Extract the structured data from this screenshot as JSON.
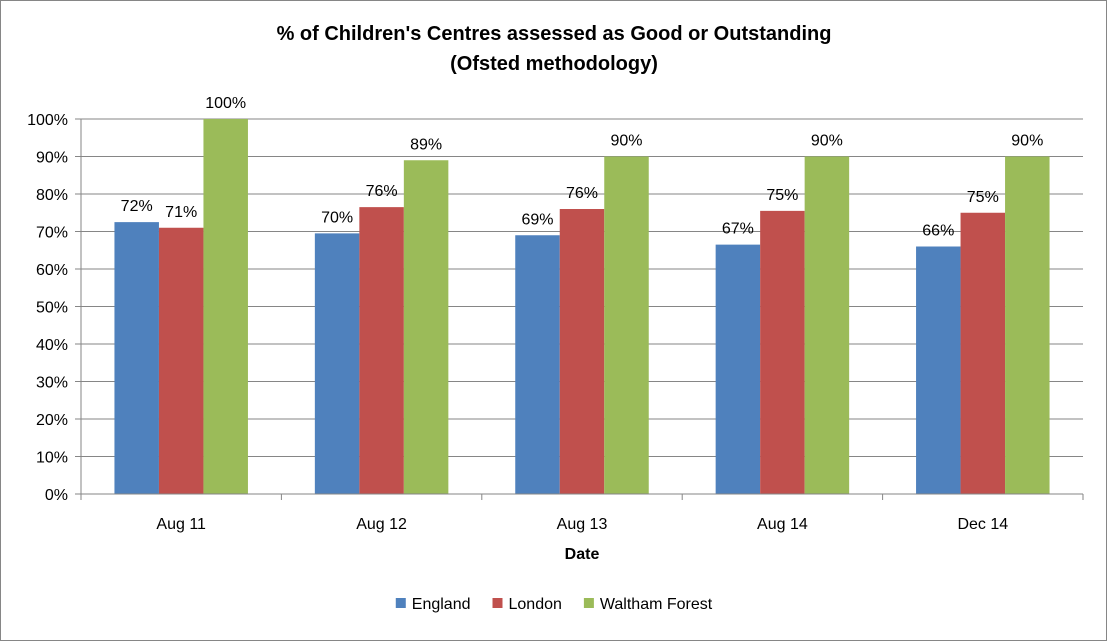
{
  "chart_data": {
    "type": "bar",
    "title": "% of Children's Centres assessed as Good or Outstanding",
    "subtitle": "(Ofsted methodology)",
    "xlabel": "Date",
    "ylabel": "",
    "categories": [
      "Aug 11",
      "Aug 12",
      "Aug 13",
      "Aug 14",
      "Dec 14"
    ],
    "ylim": [
      0,
      100
    ],
    "yticks": [
      "0%",
      "10%",
      "20%",
      "30%",
      "40%",
      "50%",
      "60%",
      "70%",
      "80%",
      "90%",
      "100%"
    ],
    "grid": true,
    "legend_position": "bottom",
    "series": [
      {
        "name": "England",
        "color": "#4F81BD",
        "values": [
          72.5,
          69.5,
          69,
          66.5,
          66
        ],
        "labels": [
          "72%",
          "70%",
          "69%",
          "67%",
          "66%"
        ]
      },
      {
        "name": "London",
        "color": "#C0504D",
        "values": [
          71,
          76.5,
          76,
          75.5,
          75
        ],
        "labels": [
          "71%",
          "76%",
          "76%",
          "75%",
          "75%"
        ]
      },
      {
        "name": "Waltham Forest",
        "color": "#9BBB59",
        "values": [
          100,
          89,
          90,
          90,
          90
        ],
        "labels": [
          "100%",
          "89%",
          "90%",
          "90%",
          "90%"
        ]
      }
    ]
  }
}
